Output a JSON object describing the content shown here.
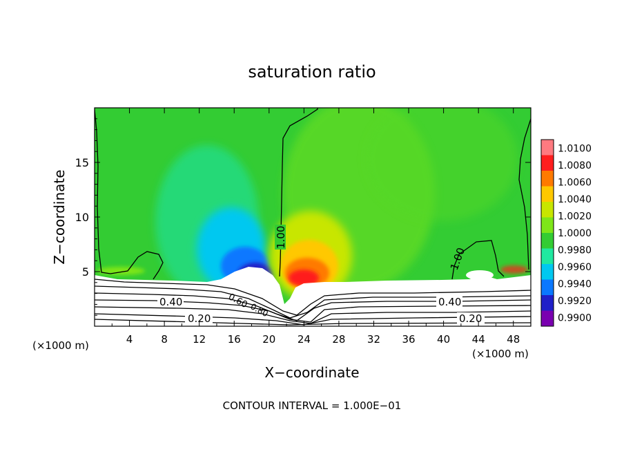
{
  "chart_data": {
    "type": "heatmap",
    "title": "saturation ratio",
    "xlabel": "X−coordinate",
    "ylabel": "Z−coordinate",
    "x_unit": "(×1000 m)",
    "y_unit": "(×1000 m)",
    "footer": "CONTOUR INTERVAL = 1.000E−01",
    "xlim": [
      0,
      50
    ],
    "ylim": [
      0,
      20
    ],
    "x_ticks": [
      4,
      8,
      12,
      16,
      20,
      24,
      28,
      32,
      36,
      40,
      44,
      48
    ],
    "y_ticks": [
      5,
      10,
      15
    ],
    "colorbar": {
      "labels": [
        "0.9900",
        "0.9920",
        "0.9940",
        "0.9960",
        "0.9980",
        "1.0000",
        "1.0020",
        "1.0040",
        "1.0060",
        "1.0080",
        "1.0100"
      ],
      "colors": [
        "#7a00b0",
        "#2020c8",
        "#0a78ff",
        "#00c8f0",
        "#20e8a0",
        "#33cc33",
        "#7ee619",
        "#c8e600",
        "#ffc800",
        "#ff7a00",
        "#ff1e1e",
        "#ff7a80"
      ]
    },
    "contour_labels": [
      {
        "text": "1.00",
        "x": 21.0,
        "z": 8.2
      },
      {
        "text": "1.00",
        "x": 41.5,
        "z": 6.3
      },
      {
        "text": "0.40",
        "x": 8.5,
        "z": 2.2
      },
      {
        "text": "0.40",
        "x": 41.5,
        "z": 2.2
      },
      {
        "text": "0.20",
        "x": 12.5,
        "z": 0.7
      },
      {
        "text": "0.20",
        "x": 43.5,
        "z": 0.7
      },
      {
        "text": "0.60",
        "x": 16.5,
        "z": 2.6
      },
      {
        "text": "0.80",
        "x": 19.5,
        "z": 1.8
      }
    ]
  }
}
